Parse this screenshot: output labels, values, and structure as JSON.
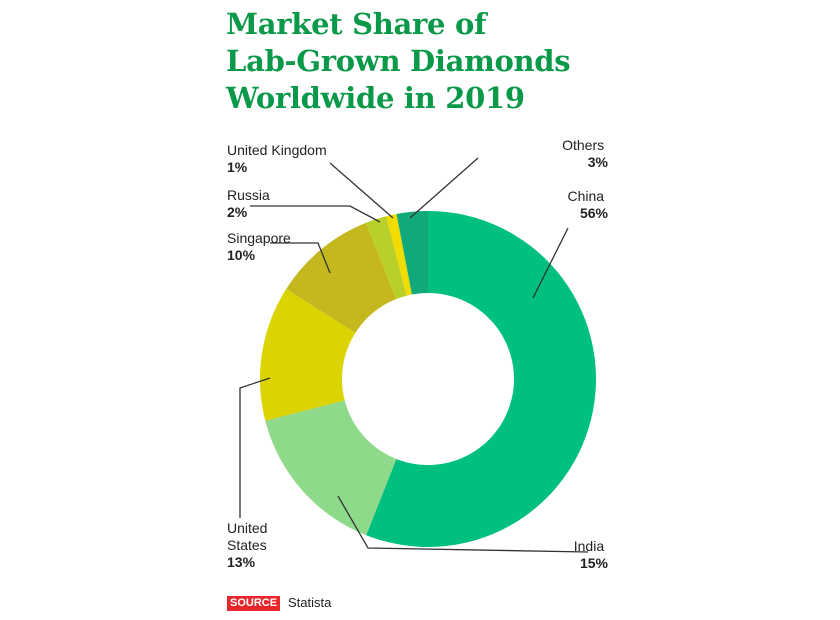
{
  "chart_data": {
    "type": "pie",
    "title_lines": [
      "Market Share of",
      "Lab-Grown Diamonds",
      "Worldwide in 2019"
    ],
    "categories": [
      "China",
      "India",
      "United States",
      "Singapore",
      "Russia",
      "United Kingdom",
      "Others"
    ],
    "values": [
      56,
      15,
      13,
      10,
      2,
      1,
      3
    ],
    "value_labels": [
      "56%",
      "15%",
      "13%",
      "10%",
      "2%",
      "1%",
      "3%"
    ],
    "label_lines": {
      "China": [
        "China"
      ],
      "India": [
        "India"
      ],
      "United States": [
        "United",
        "States"
      ],
      "Singapore": [
        "Singapore"
      ],
      "Russia": [
        "Russia"
      ],
      "United Kingdom": [
        "United Kingdom"
      ],
      "Others": [
        "Others"
      ]
    },
    "colors": [
      "#00c080",
      "#8fd98a",
      "#dcd400",
      "#c4b81e",
      "#b9cf2a",
      "#f2dc00",
      "#12a97a"
    ],
    "donut": true,
    "start": "12 o'clock",
    "direction": "clockwise"
  },
  "source": {
    "badge": "SOURCE",
    "name": "Statista"
  }
}
